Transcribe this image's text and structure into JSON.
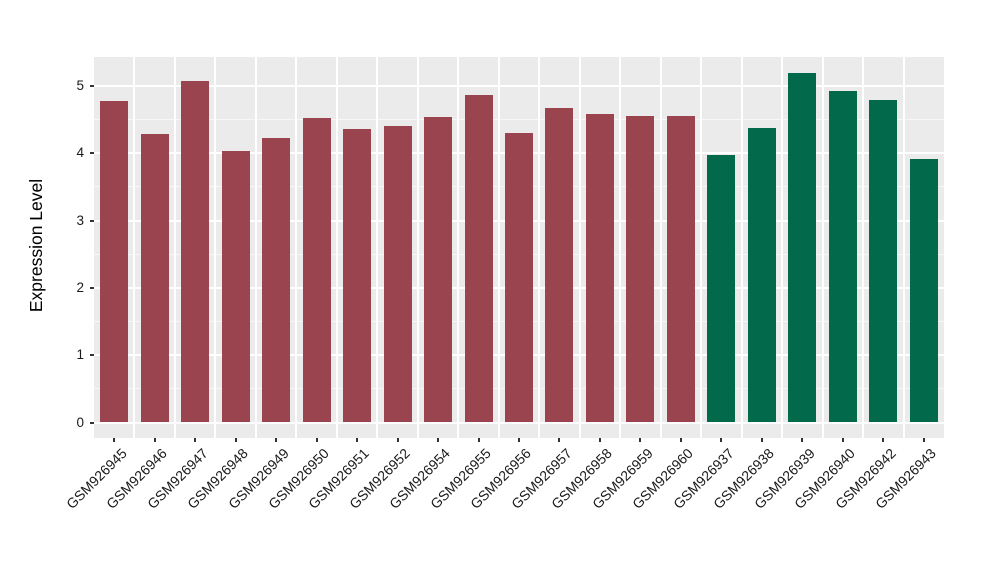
{
  "figure": {
    "background": "#FFFFFF",
    "panel_background": "#EBEBEB",
    "grid_major_color": "#FFFFFF",
    "grid_minor_color": "#F7F7F7",
    "tick_color": "#333333",
    "text_color": "#1A1A1A"
  },
  "chart_data": {
    "type": "bar",
    "title": "",
    "xlabel": "",
    "ylabel": "Expression Level",
    "ylim": [
      0,
      5.43
    ],
    "yticks": [
      0,
      1,
      2,
      3,
      4,
      5
    ],
    "grid": true,
    "legend": false,
    "x_label_angle_deg": 45,
    "categories": [
      "GSM926945",
      "GSM926946",
      "GSM926947",
      "GSM926948",
      "GSM926949",
      "GSM926950",
      "GSM926951",
      "GSM926952",
      "GSM926954",
      "GSM926955",
      "GSM926956",
      "GSM926957",
      "GSM926958",
      "GSM926959",
      "GSM926960",
      "GSM926937",
      "GSM926938",
      "GSM926939",
      "GSM926940",
      "GSM926942",
      "GSM926943"
    ],
    "values": [
      4.77,
      4.28,
      5.08,
      4.03,
      4.22,
      4.53,
      4.36,
      4.4,
      4.54,
      4.87,
      4.3,
      4.68,
      4.58,
      4.56,
      4.56,
      3.97,
      4.37,
      5.19,
      4.92,
      4.79,
      3.92
    ],
    "bar_groups": [
      0,
      0,
      0,
      0,
      0,
      0,
      0,
      0,
      0,
      0,
      0,
      0,
      0,
      0,
      0,
      1,
      1,
      1,
      1,
      1,
      1
    ],
    "palette": [
      "#9A4450",
      "#026A4A"
    ]
  }
}
